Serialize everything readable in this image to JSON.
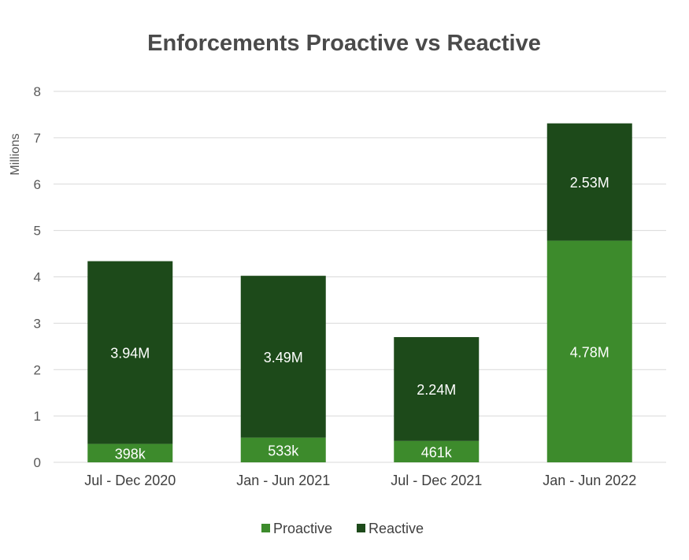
{
  "chart_data": {
    "type": "bar",
    "stacked": true,
    "title": "Enforcements Proactive vs Reactive",
    "ylabel": "Millions",
    "xlabel": "",
    "ylim": [
      0,
      8
    ],
    "yticks": [
      "0",
      "1",
      "2",
      "3",
      "4",
      "5",
      "6",
      "7",
      "8"
    ],
    "grid": true,
    "legend_position": "bottom",
    "categories": [
      "Jul - Dec 2020",
      "Jan - Jun 2021",
      "Jul - Dec 2021",
      "Jan - Jun 2022"
    ],
    "series": [
      {
        "name": "Proactive",
        "color": "#3d8b2c",
        "values": [
          0.398,
          0.533,
          0.461,
          4.78
        ],
        "labels": [
          "398k",
          "533k",
          "461k",
          "4.78M"
        ]
      },
      {
        "name": "Reactive",
        "color": "#1d4a1a",
        "values": [
          3.94,
          3.49,
          2.24,
          2.53
        ],
        "labels": [
          "3.94M",
          "3.49M",
          "2.24M",
          "2.53M"
        ]
      }
    ]
  }
}
